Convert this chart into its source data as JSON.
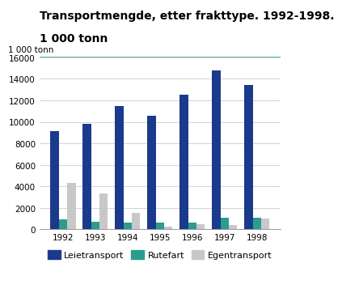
{
  "title_line1": "Transportmengde, etter frakttype. 1992-1998.",
  "title_line2": "1 000 tonn",
  "ylabel": "1 000 tonn",
  "years": [
    1992,
    1993,
    1994,
    1995,
    1996,
    1997,
    1998
  ],
  "leietransport": [
    9100,
    9800,
    11500,
    10600,
    12500,
    14800,
    13400
  ],
  "rutefart": [
    900,
    700,
    600,
    650,
    650,
    1050,
    1050
  ],
  "egentransport": [
    4300,
    3350,
    1500,
    250,
    500,
    400,
    1000
  ],
  "colors": {
    "leietransport": "#1a3a8c",
    "rutefart": "#2a9d8f",
    "egentransport": "#c8c8c8"
  },
  "ylim": [
    0,
    16000
  ],
  "yticks": [
    0,
    2000,
    4000,
    6000,
    8000,
    10000,
    12000,
    14000,
    16000
  ],
  "legend_labels": [
    "Leietransport",
    "Rutefart",
    "Egentransport"
  ],
  "title_color": "#000000",
  "background_color": "#ffffff",
  "grid_color": "#cccccc",
  "teal_line_color": "#2a9d8f",
  "bar_width": 0.26,
  "title_fontsize": 10,
  "axis_fontsize": 7.5,
  "tick_fontsize": 7.5,
  "legend_fontsize": 8
}
